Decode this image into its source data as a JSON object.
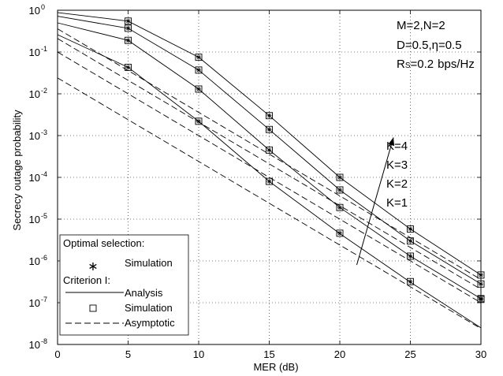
{
  "chart_data": {
    "type": "line",
    "title": "",
    "xlabel": "MER (dB)",
    "ylabel": "Secrecy outage probability",
    "xlim": [
      0,
      30
    ],
    "ylim": [
      1e-08,
      1
    ],
    "yscale": "log",
    "grid": true,
    "x_ticks": [
      0,
      5,
      10,
      15,
      20,
      25,
      30
    ],
    "y_ticks": [
      {
        "exp": 0,
        "value": 1
      },
      {
        "exp": -1,
        "value": 0.1
      },
      {
        "exp": -2,
        "value": 0.01
      },
      {
        "exp": -3,
        "value": 0.001
      },
      {
        "exp": -4,
        "value": 0.0001
      },
      {
        "exp": -5,
        "value": 1e-05
      },
      {
        "exp": -6,
        "value": 1e-06
      },
      {
        "exp": -7,
        "value": 1e-07
      },
      {
        "exp": -8,
        "value": 1e-08
      }
    ],
    "x_tick_labels": [
      "0",
      "5",
      "10",
      "15",
      "20",
      "25",
      "30"
    ],
    "y_tick_base": "10",
    "y_tick_exponents": [
      "0",
      "-1",
      "-2",
      "-3",
      "-4",
      "-5",
      "-6",
      "-7",
      "-8"
    ],
    "x_sim": [
      5,
      10,
      15,
      20,
      25,
      30
    ],
    "analysis_x": [
      0,
      5,
      10,
      15,
      20,
      25,
      30
    ],
    "series": [
      {
        "label": "K=1",
        "analysis": [
          0.26,
          0.043,
          0.0022,
          8e-05,
          4.5e-06,
          3.1e-07,
          2.5e-08
        ],
        "simulation": [
          0.043,
          0.0022,
          8e-05,
          4.6e-06,
          3.2e-07,
          1.2e-07
        ]
      },
      {
        "label": "K=2",
        "analysis": [
          0.5,
          0.19,
          0.013,
          0.00045,
          1.9e-05,
          1.3e-06,
          1.25e-07
        ],
        "simulation": [
          0.19,
          0.013,
          0.00045,
          1.9e-05,
          1.3e-06,
          1.25e-07
        ]
      },
      {
        "label": "K=3",
        "analysis": [
          0.72,
          0.37,
          0.037,
          0.0014,
          5e-05,
          3e-06,
          2.8e-07
        ],
        "simulation": [
          0.37,
          0.037,
          0.0014,
          5e-05,
          3e-06,
          2.8e-07
        ]
      },
      {
        "label": "K=4",
        "analysis": [
          0.88,
          0.55,
          0.075,
          0.003,
          0.0001,
          5.8e-06,
          4.6e-07
        ],
        "simulation": [
          0.55,
          0.075,
          0.003,
          0.0001,
          5.8e-06,
          4.6e-07
        ]
      }
    ],
    "asymptotic": [
      {
        "x": [
          0,
          30
        ],
        "y": [
          0.024,
          2.4e-08
        ]
      },
      {
        "x": [
          0,
          30
        ],
        "y": [
          0.1,
          1e-07
        ]
      },
      {
        "x": [
          0,
          30
        ],
        "y": [
          0.21,
          2.1e-07
        ]
      },
      {
        "x": [
          0,
          30
        ],
        "y": [
          0.36,
          3.6e-07
        ]
      }
    ],
    "annotations": {
      "params": [
        "M=2,N=2",
        "D=0.5,η=0.5",
        "bps/Hz"
      ],
      "rs_prefix": "R",
      "rs_sub": "S",
      "rs_value": "=0.2",
      "k_labels": [
        "K=4",
        "K=3",
        "K=2",
        "K=1"
      ]
    },
    "legend": {
      "placement": "bottom-left",
      "group1_title": "Optimal selection:",
      "group1_entries": [
        "Simulation"
      ],
      "group2_title": "Criterion I:",
      "group2_entries": [
        "Analysis",
        "Simulation",
        "Asymptotic"
      ]
    },
    "arrow": {
      "from_x": 21.2,
      "from_y": 8e-07,
      "to_x": 23.8,
      "to_y": 0.0009,
      "direction": "increasing K"
    }
  }
}
